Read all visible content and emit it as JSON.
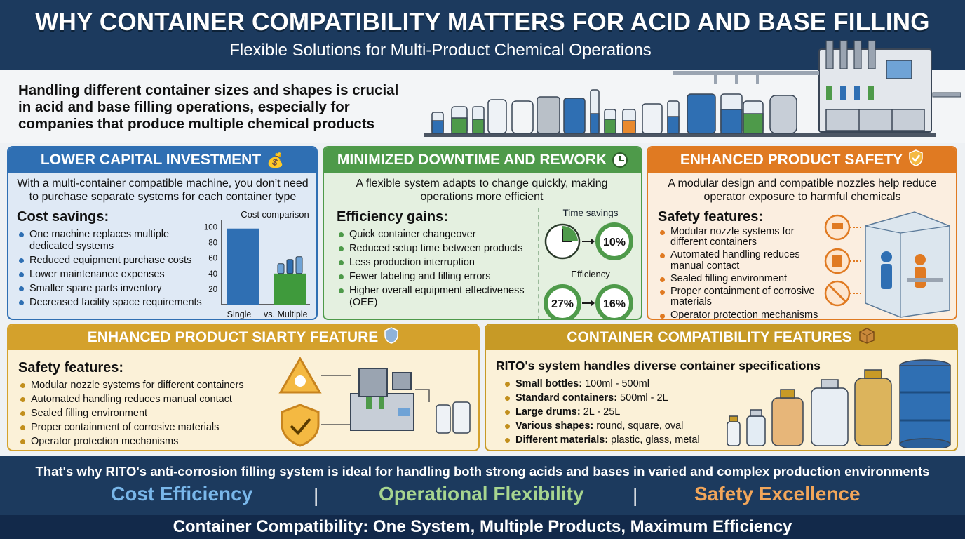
{
  "header": {
    "title": "WHY CONTAINER COMPATIBILITY MATTERS FOR ACID AND BASE FILLING",
    "subtitle": "Flexible Solutions for Multi-Product Chemical Operations"
  },
  "intro": {
    "text": "Handling different container sizes and shapes is crucial in acid and base filling operations, especially for companies that produce multiple chemical products"
  },
  "card1": {
    "title": "LOWER CAPITAL INVESTMENT",
    "icon": "money-bag-icon",
    "lead": "With a multi-container compatible machine, you don’t need to purchase separate systems for each container type",
    "section": "Cost savings:",
    "items": [
      "One machine replaces multiple dedicated systems",
      "Reduced equipment purchase costs",
      "Lower maintenance expenses",
      "Smaller spare parts inventory",
      "Decreased facility space requirements"
    ]
  },
  "chart_data": {
    "type": "bar",
    "title": "Cost comparison",
    "categories": [
      "Single",
      "Multiple"
    ],
    "values": [
      98,
      40
    ],
    "yticks": [
      100,
      80,
      60,
      40,
      20
    ],
    "ylim": [
      0,
      105
    ],
    "separator": "vs.",
    "colors": [
      "#2f6fb3",
      "#3f9a3c"
    ]
  },
  "card2": {
    "title": "MINIMIZED DOWNTIME AND REWORK",
    "icon": "clock-icon",
    "lead": "A flexible system adapts to change quickly, making operations more efficient",
    "section": "Efficiency gains:",
    "items": [
      "Quick container changeover",
      "Reduced setup time between products",
      "Less production interruption",
      "Fewer labeling and filling errors",
      "Higher overall equipment effectiveness (OEE)"
    ],
    "time_label": "Time savings",
    "time_value": "10%",
    "eff_label": "Efficiency",
    "eff_before": "27%",
    "eff_after": "16%"
  },
  "card3": {
    "title": "ENHANCED PRODUCT SAFETY",
    "icon": "shield-check-icon",
    "lead": "A modular design and compatible nozzles help reduce operator exposure to harmful chemicals",
    "section": "Safety features:",
    "items": [
      "Modular nozzle systems for different containers",
      "Automated handling reduces manual contact",
      "Sealed filling environment",
      "Proper containment of corrosive materials",
      "Operator protection mechanisms"
    ]
  },
  "card4": {
    "title": "ENHANCED PRODUCT SIARTY FEATURE",
    "icon": "shield-icon",
    "section": "Safety features:",
    "items": [
      "Modular nozzle systems for different containers",
      "Automated handling reduces manual contact",
      "Sealed filling environment",
      "Proper containment of corrosive materials",
      "Operator protection mechanisms"
    ]
  },
  "card5": {
    "title": "CONTAINER COMPATIBILITY FEATURES",
    "icon": "box-icon",
    "section": "RITO's system handles diverse container specifications",
    "items": [
      {
        "k": "Small bottles:",
        "v": " 100ml - 500ml"
      },
      {
        "k": "Standard containers:",
        "v": " 500ml - 2L"
      },
      {
        "k": "Large drums:",
        "v": " 2L - 25L"
      },
      {
        "k": "Various shapes:",
        "v": " round, square, oval"
      },
      {
        "k": "Different materials:",
        "v": " plastic, glass, metal"
      }
    ]
  },
  "footer": {
    "line1": "That's why RITO's anti-corrosion filling system is ideal for handling both strong acids and bases in varied and complex production environments",
    "pill1": "Cost Efficiency",
    "pill2": "Operational Flexibility",
    "pill3": "Safety Excellence",
    "sep": "|",
    "line3": "Container Compatibility: One System, Multiple Products, Maximum Efficiency",
    "colors": {
      "pill1": "#79b7ea",
      "pill2": "#a7d58f",
      "pill3": "#f2a65a"
    }
  }
}
